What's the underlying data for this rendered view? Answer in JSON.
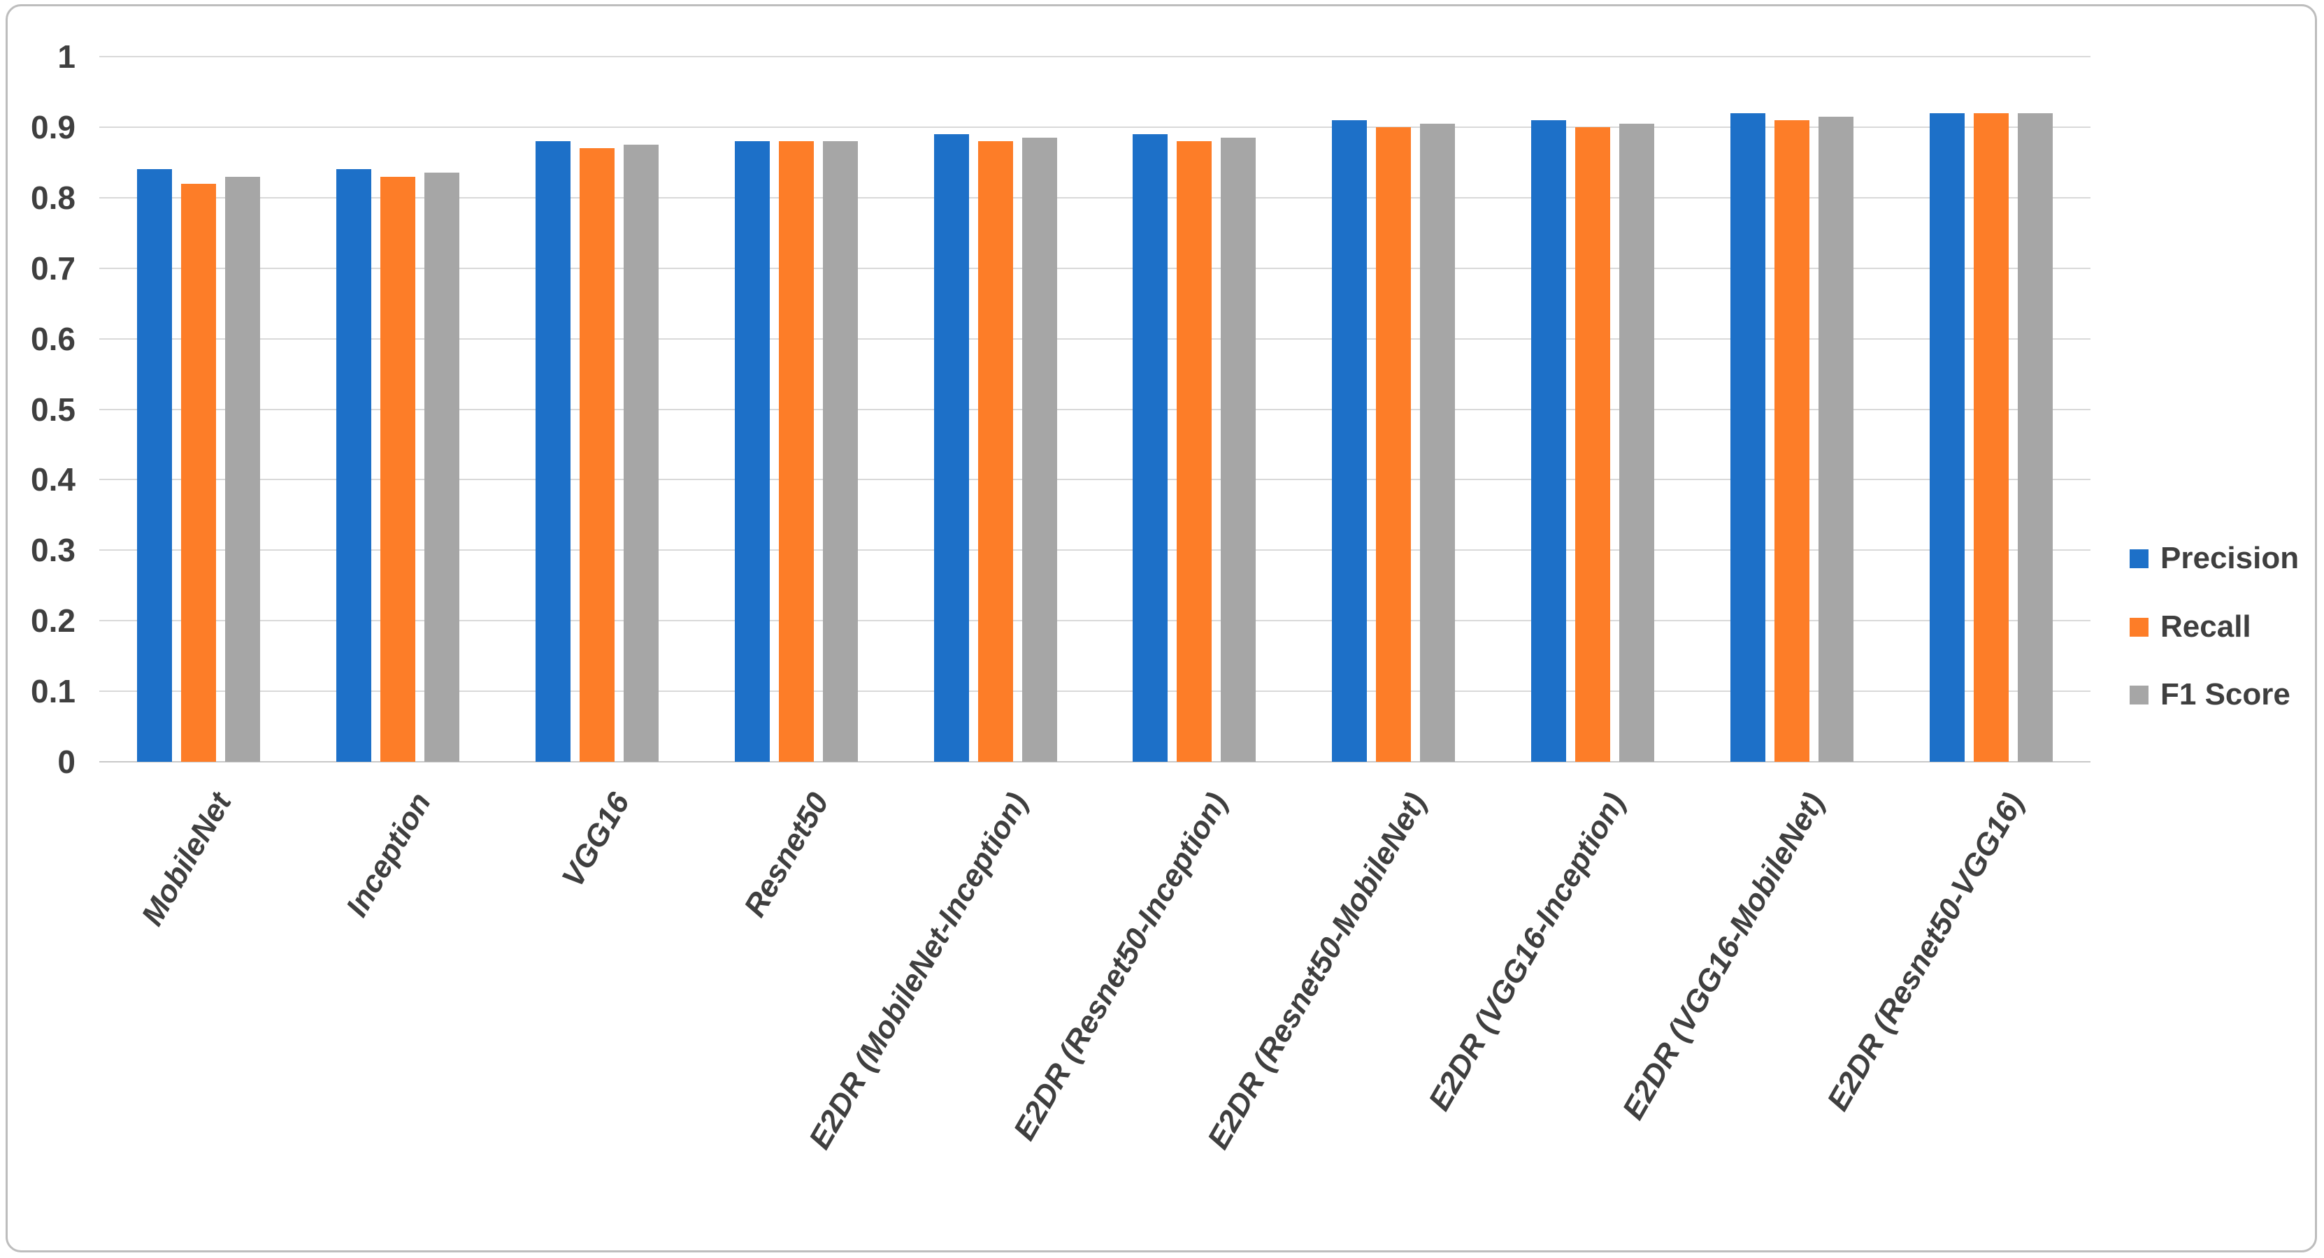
{
  "figure": {
    "background_color": "#ffffff",
    "border_color": "#bdbdbd"
  },
  "chart_data": {
    "type": "bar",
    "title": "",
    "xlabel": "",
    "ylabel": "",
    "categories": [
      "MobileNet",
      "Inception",
      "VGG16",
      "Resnet50",
      "E2DR (MobileNet-Inception)",
      "E2DR (Resnet50-Inception)",
      "E2DR (Resnet50-MobileNet)",
      "E2DR (VGG16-Inception)",
      "E2DR (VGG16-MobileNet)",
      "E2DR (Resnet50-VGG16)"
    ],
    "series": [
      {
        "name": "Precision",
        "color": "#1d70c8",
        "values": [
          0.84,
          0.84,
          0.88,
          0.88,
          0.89,
          0.89,
          0.91,
          0.91,
          0.92,
          0.92
        ]
      },
      {
        "name": "Recall",
        "color": "#fd7d28",
        "values": [
          0.82,
          0.83,
          0.87,
          0.88,
          0.88,
          0.88,
          0.9,
          0.9,
          0.91,
          0.92
        ]
      },
      {
        "name": "F1 Score",
        "color": "#a6a6a6",
        "values": [
          0.83,
          0.835,
          0.875,
          0.88,
          0.885,
          0.885,
          0.905,
          0.905,
          0.915,
          0.92
        ]
      }
    ],
    "ylim": [
      0,
      1
    ],
    "ytick_labels": [
      "1",
      "0.9",
      "0.8",
      "0.7",
      "0.6",
      "0.5",
      "0.4",
      "0.3",
      "0.2",
      "0.1",
      "0"
    ],
    "grid": "horizontal",
    "gridline_color": "#d9d9d9",
    "axis_text_color": "#3f3f3f",
    "legend_position": "right",
    "x_label_rotation_deg": -60
  }
}
